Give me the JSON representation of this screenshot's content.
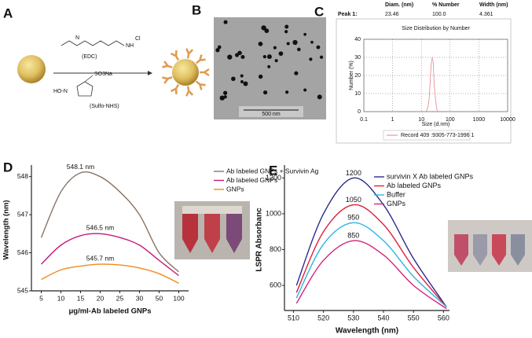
{
  "figure": {
    "panels": [
      "A",
      "B",
      "C",
      "D",
      "E"
    ],
    "reagents": [
      "(EDC)",
      "(Sulfo-NHS)"
    ],
    "atoms": [
      "Cl",
      "SO3Na",
      "HO-N",
      "N",
      "NH"
    ],
    "scale_bar": "500 nm"
  },
  "chart_data": [
    {
      "type": "line",
      "table": {
        "columns": [
          "Diam. (nm)",
          "% Number",
          "Width (nm)"
        ],
        "rows": [
          [
            "Peak 1:",
            "23.46",
            "100.0",
            "4.361"
          ]
        ]
      },
      "title": "Size Distribution by Number",
      "xlabel": "Size (d.nm)",
      "ylabel": "Number (%)",
      "xscale": "log",
      "xlim": [
        0.1,
        10000
      ],
      "xticks": [
        0.1,
        1,
        10,
        100,
        1000,
        10000
      ],
      "ylim": [
        0,
        40
      ],
      "yticks": [
        0,
        10,
        20,
        30,
        40
      ],
      "grid": true,
      "legend": "bottom",
      "series": [
        {
          "name": "Record 409 :9305-773-1996 1",
          "color": "#e8808a",
          "x": [
            15,
            18,
            20,
            22,
            24,
            26,
            28,
            32,
            36
          ],
          "values": [
            0,
            5,
            15,
            26,
            30,
            26,
            15,
            5,
            0
          ]
        }
      ]
    },
    {
      "type": "line",
      "xlabel": "μg/ml-Ab labeled GNPs",
      "ylabel": "Wavelength (nm)",
      "categories": [
        "5",
        "10",
        "15",
        "20",
        "25",
        "30",
        "50",
        "100"
      ],
      "ylim": [
        545,
        548.2
      ],
      "yticks": [
        545,
        546,
        547,
        548
      ],
      "grid": false,
      "legend": "upper right",
      "series": [
        {
          "name": "Ab labeled GNPs + Survivin Ag",
          "color": "#8a7466",
          "values": [
            546.4,
            547.6,
            548.1,
            548.0,
            547.6,
            547.0,
            546.0,
            545.5
          ],
          "value_labels": [
            null,
            null,
            "548.1 nm",
            null,
            null,
            null,
            null,
            null
          ]
        },
        {
          "name": "Ab labeled GNPs",
          "color": "#c8187a",
          "values": [
            545.7,
            546.2,
            546.45,
            546.5,
            546.4,
            546.2,
            545.8,
            545.4
          ],
          "value_labels": [
            null,
            null,
            null,
            "546.5 nm",
            null,
            null,
            null,
            null
          ]
        },
        {
          "name": "GNPs",
          "color": "#f08a1c",
          "values": [
            545.3,
            545.55,
            545.65,
            545.7,
            545.68,
            545.6,
            545.45,
            545.2
          ],
          "value_labels": [
            null,
            null,
            null,
            "545.7 nm",
            null,
            null,
            null,
            null
          ]
        }
      ]
    },
    {
      "type": "line",
      "xlabel": "Wavelength (nm)",
      "ylabel": "LSPR Absorbanc",
      "xlim": [
        507,
        562
      ],
      "xticks": [
        510,
        520,
        530,
        540,
        550,
        560
      ],
      "ylim": [
        460,
        1250
      ],
      "yticks": [
        600,
        800,
        1000,
        1200
      ],
      "grid": false,
      "legend": "upper right",
      "data_labels": "peak",
      "series": [
        {
          "name": "survivin X Ab labeled GNPs",
          "color": "#2b2a8c",
          "x": [
            511,
            520,
            530,
            540,
            550,
            561
          ],
          "values": [
            600,
            1000,
            1200,
            1050,
            750,
            480
          ]
        },
        {
          "name": "Ab labeled GNPs",
          "color": "#e0203a",
          "x": [
            511,
            520,
            530,
            540,
            550,
            561
          ],
          "values": [
            560,
            900,
            1050,
            940,
            700,
            480
          ]
        },
        {
          "name": "Buffer",
          "color": "#29b5e8",
          "x": [
            511,
            520,
            530,
            540,
            550,
            561
          ],
          "values": [
            530,
            830,
            950,
            850,
            650,
            480
          ]
        },
        {
          "name": "GNPs",
          "color": "#d6247a",
          "x": [
            511,
            520,
            530,
            540,
            550,
            561
          ],
          "values": [
            500,
            740,
            850,
            770,
            600,
            470
          ]
        }
      ]
    }
  ]
}
